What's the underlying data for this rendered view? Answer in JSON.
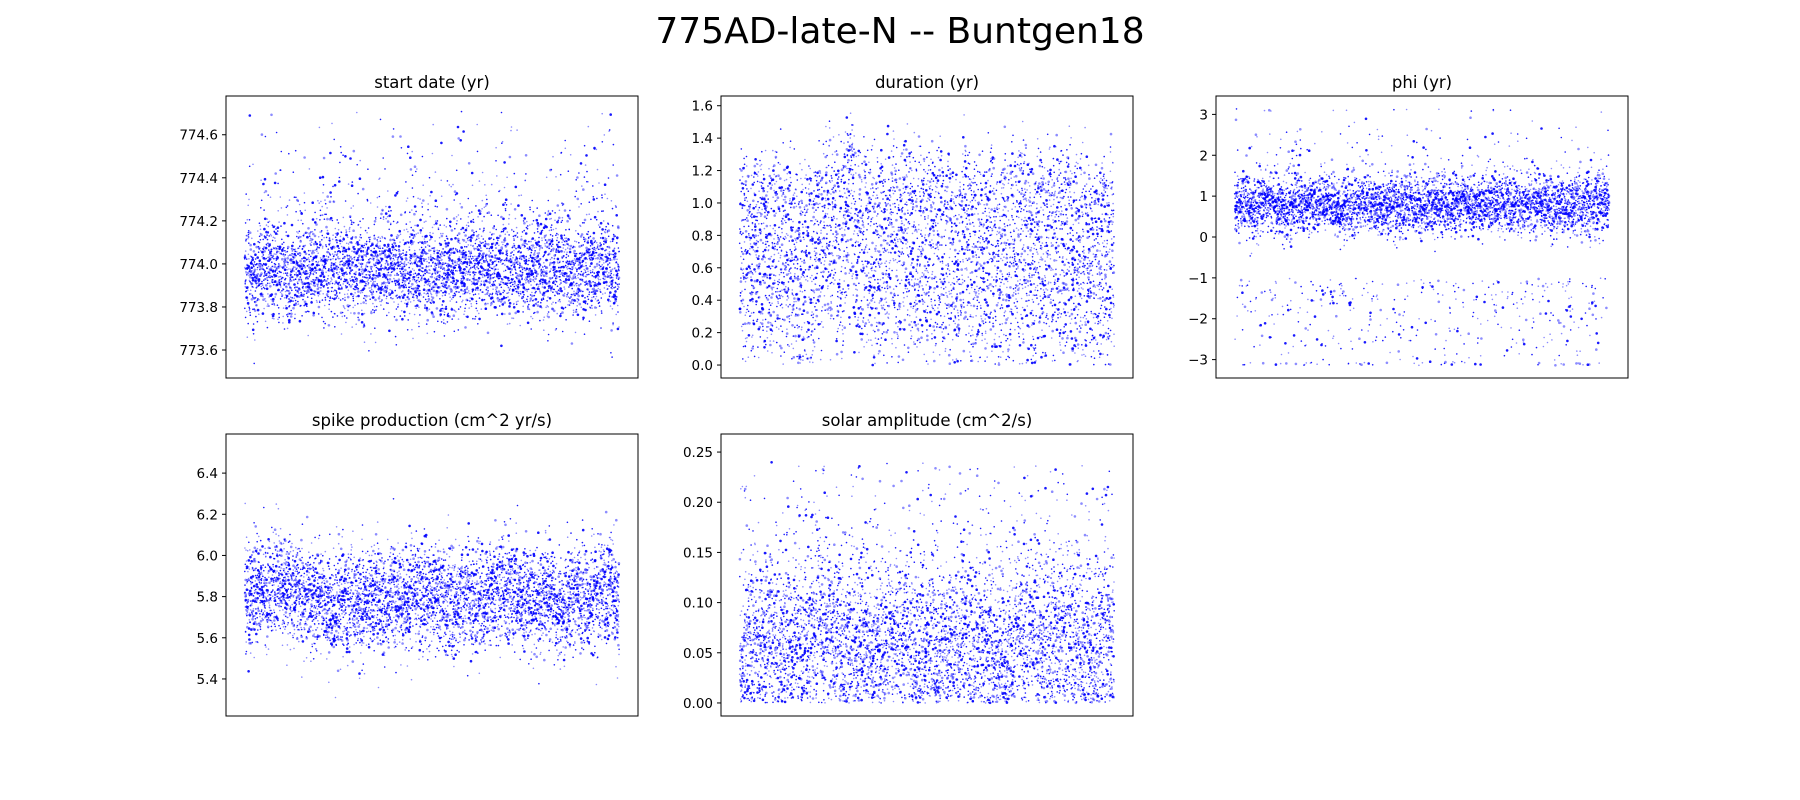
{
  "figure": {
    "suptitle": "775AD-late-N -- Buntgen18"
  },
  "chart_data": [
    {
      "type": "scatter",
      "title": "start date (yr)",
      "xlabel": "",
      "ylabel": "",
      "xlim": [
        -250,
        5250
      ],
      "ylim": [
        773.47,
        774.78
      ],
      "yticks": [
        773.6,
        773.8,
        774.0,
        774.2,
        774.4,
        774.6
      ],
      "ytick_labels": [
        "773.6",
        "773.8",
        "774.0",
        "774.2",
        "774.4",
        "774.6"
      ],
      "x_ticks_visible": false,
      "grid": false,
      "color": "#0000ff",
      "n_points": 5000,
      "y_center": 773.97,
      "y_spread": 0.11,
      "y_range": [
        773.53,
        774.71
      ],
      "y_bursts_above": [
        774.4,
        774.7
      ],
      "note_series": "MCMC chain samples; individual values approximated from the visual distribution"
    },
    {
      "type": "scatter",
      "title": "duration (yr)",
      "xlabel": "",
      "ylabel": "",
      "xlim": [
        -250,
        5250
      ],
      "ylim": [
        -0.08,
        1.66
      ],
      "yticks": [
        0.0,
        0.2,
        0.4,
        0.6,
        0.8,
        1.0,
        1.2,
        1.4,
        1.6
      ],
      "ytick_labels": [
        "0.0",
        "0.2",
        "0.4",
        "0.6",
        "0.8",
        "1.0",
        "1.2",
        "1.4",
        "1.6"
      ],
      "x_ticks_visible": false,
      "grid": false,
      "color": "#0000ff",
      "n_points": 5000,
      "y_center": 0.7,
      "y_spread": 0.35,
      "y_range": [
        0.0,
        1.58
      ],
      "note_series": "MCMC chain samples; individual values approximated from the visual distribution"
    },
    {
      "type": "scatter",
      "title": "phi (yr)",
      "xlabel": "",
      "ylabel": "",
      "xlim": [
        -250,
        5250
      ],
      "ylim": [
        -3.45,
        3.45
      ],
      "yticks": [
        -3,
        -2,
        -1,
        0,
        1,
        2,
        3
      ],
      "ytick_labels": [
        "−3",
        "−2",
        "−1",
        "0",
        "1",
        "2",
        "3"
      ],
      "x_ticks_visible": false,
      "grid": false,
      "color": "#0000ff",
      "n_points": 5000,
      "y_center": 0.8,
      "y_spread": 0.35,
      "y_range": [
        -3.14,
        3.14
      ],
      "y_bursts_below": [
        -3.1,
        -1.0
      ],
      "note_series": "MCMC chain samples; individual values approximated from the visual distribution"
    },
    {
      "type": "scatter",
      "title": "spike production (cm^2 yr/s)",
      "xlabel": "",
      "ylabel": "",
      "xlim": [
        -250,
        5250
      ],
      "ylim": [
        5.22,
        6.59
      ],
      "yticks": [
        5.4,
        5.6,
        5.8,
        6.0,
        6.2,
        6.4
      ],
      "ytick_labels": [
        "5.4",
        "5.6",
        "5.8",
        "6.0",
        "6.2",
        "6.4"
      ],
      "x_ticks_visible": false,
      "grid": false,
      "color": "#0000ff",
      "n_points": 5000,
      "y_center": 5.8,
      "y_spread": 0.13,
      "y_range": [
        5.29,
        6.54
      ],
      "note_series": "MCMC chain samples; individual values approximated from the visual distribution"
    },
    {
      "type": "scatter",
      "title": "solar amplitude (cm^2/s)",
      "xlabel": "",
      "ylabel": "",
      "xlim": [
        -250,
        5250
      ],
      "ylim": [
        -0.013,
        0.268
      ],
      "yticks": [
        0.0,
        0.05,
        0.1,
        0.15,
        0.2,
        0.25
      ],
      "ytick_labels": [
        "0.00",
        "0.05",
        "0.10",
        "0.15",
        "0.20",
        "0.25"
      ],
      "x_ticks_visible": false,
      "grid": false,
      "color": "#0000ff",
      "n_points": 5000,
      "y_center": 0.07,
      "y_spread": 0.045,
      "y_range": [
        0.0,
        0.255
      ],
      "note_series": "MCMC chain samples; individual values approximated from the visual distribution"
    }
  ]
}
